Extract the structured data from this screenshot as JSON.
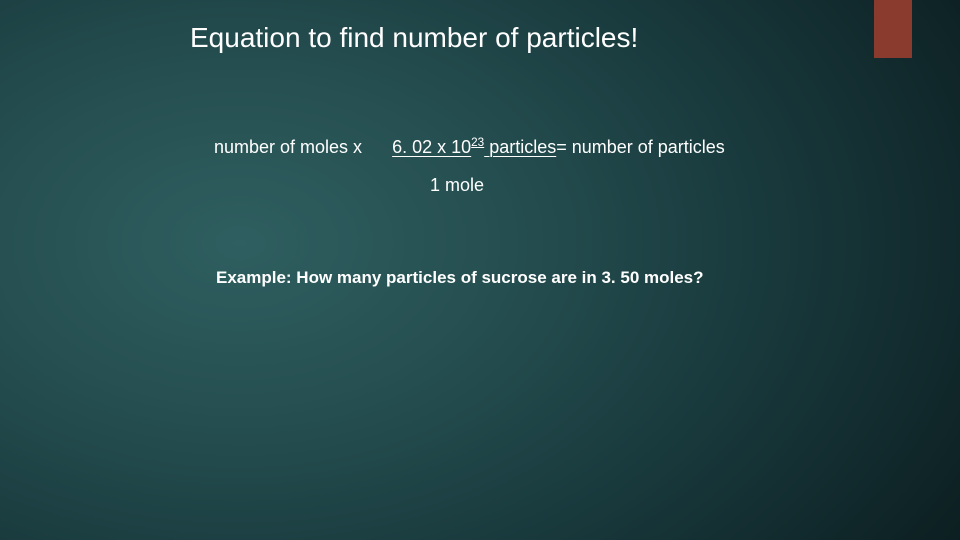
{
  "slide": {
    "title": "Equation to find number of particles!",
    "equation": {
      "left": "number of moles x",
      "numerator_part1": "6. 02 x 10",
      "numerator_exp": "23",
      "numerator_part2": " particles",
      "equals": "=",
      "right": " number of particles",
      "denominator": "1 mole"
    },
    "example": "Example:  How many particles of sucrose  are in 3. 50 moles?",
    "accent_color": "#8b3a2e",
    "text_color": "#ffffff",
    "background_gradient": {
      "center": "#2f5f60",
      "mid": "#1a3c3f",
      "edge": "#0a1a1c"
    },
    "title_fontsize": 28,
    "body_fontsize": 18,
    "example_fontsize": 17
  }
}
